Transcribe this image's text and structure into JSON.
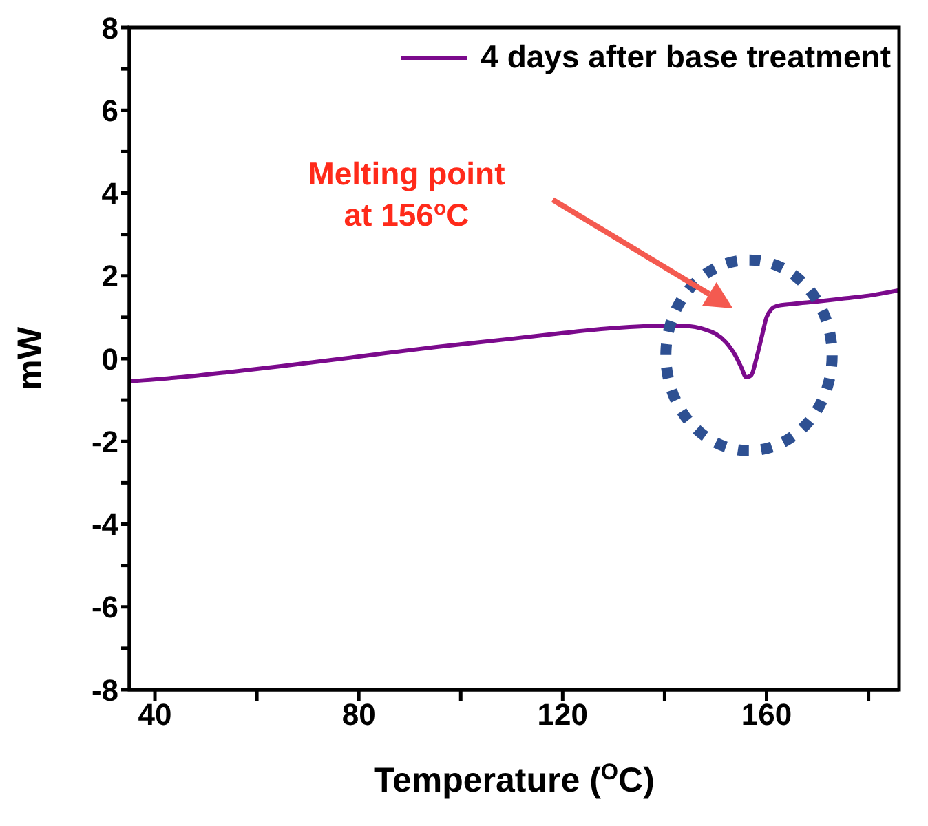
{
  "chart_data": {
    "type": "line",
    "xlabel": "Temperature ($^{O}$C)",
    "ylabel": "mW",
    "series": [
      {
        "name": "4 days after base treatment",
        "color": "#7b0a8c",
        "x": [
          35,
          45,
          55,
          65,
          80,
          95,
          110,
          120,
          130,
          140,
          145,
          148,
          150,
          152,
          154,
          155,
          156,
          157,
          158,
          159,
          160,
          161,
          162,
          165,
          170,
          175,
          180,
          186
        ],
        "values": [
          -0.55,
          -0.45,
          -0.32,
          -0.18,
          0.05,
          0.28,
          0.48,
          0.62,
          0.74,
          0.8,
          0.78,
          0.7,
          0.6,
          0.4,
          0.05,
          -0.2,
          -0.45,
          -0.4,
          0.0,
          0.5,
          1.0,
          1.2,
          1.27,
          1.32,
          1.38,
          1.45,
          1.52,
          1.65
        ]
      }
    ],
    "xlim": [
      35,
      186
    ],
    "xticks": [
      40,
      {
        "value": 60,
        "label": null
      },
      80,
      {
        "value": 100,
        "label": null
      },
      120,
      {
        "value": 140,
        "label": null
      },
      160,
      {
        "value": 180,
        "label": null
      }
    ],
    "ylim": [
      -8,
      8
    ],
    "yticks": [
      -8,
      {
        "value": -7,
        "label": null
      },
      -6,
      {
        "value": -5,
        "label": null
      },
      -4,
      {
        "value": -3,
        "label": null
      },
      -2,
      {
        "value": -1,
        "label": null
      },
      0,
      {
        "value": 1,
        "label": null
      },
      2,
      {
        "value": 3,
        "label": null
      },
      4,
      {
        "value": 5,
        "label": null
      },
      6,
      {
        "value": 7,
        "label": null
      },
      8
    ],
    "annotations": [
      "Melting point\nat 156$^{o}$C"
    ],
    "legend": "top right",
    "grid": false
  }
}
